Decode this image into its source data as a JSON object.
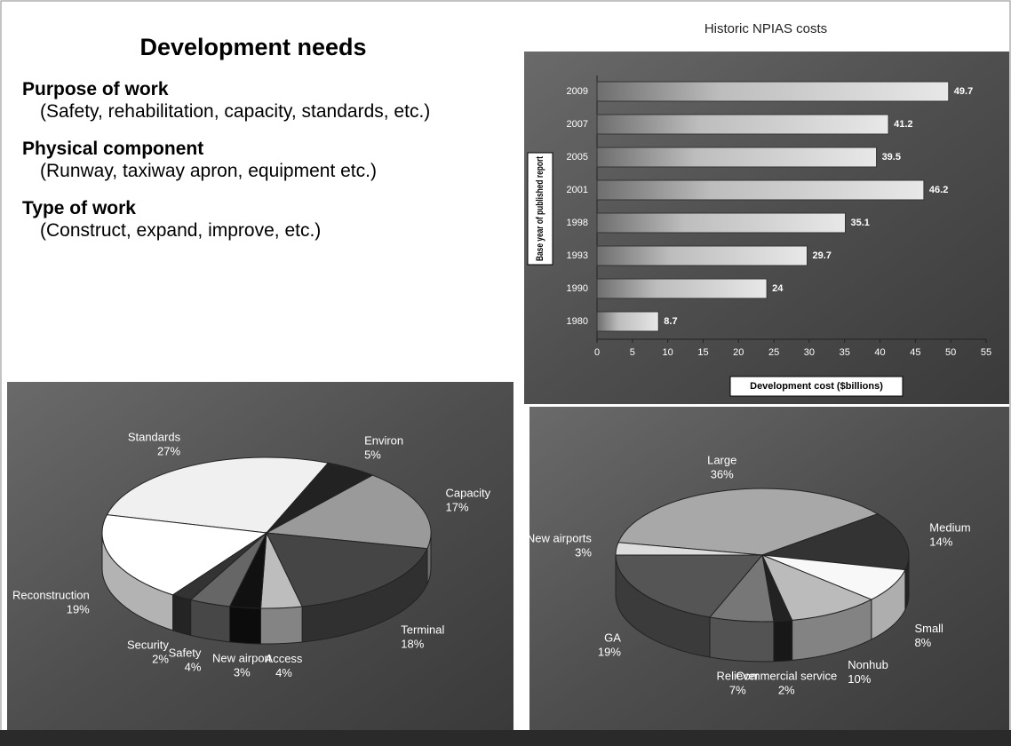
{
  "text_panel": {
    "title": "Development needs",
    "sections": [
      {
        "heading": "Purpose of work",
        "detail": "(Safety, rehabilitation, capacity, standards, etc.)"
      },
      {
        "heading": "Physical component",
        "detail": "(Runway, taxiway apron, equipment etc.)"
      },
      {
        "heading": "Type of work",
        "detail": "(Construct, expand, improve, etc.)"
      }
    ]
  },
  "chart_data": [
    {
      "type": "hbar",
      "title": "Historic NPIAS costs",
      "categories": [
        "2009",
        "2007",
        "2005",
        "2001",
        "1998",
        "1993",
        "1990",
        "1980"
      ],
      "values": [
        49.7,
        41.2,
        39.5,
        46.2,
        35.1,
        29.7,
        24,
        8.7
      ],
      "xlim": [
        0,
        55
      ],
      "xticks": [
        0,
        5,
        10,
        15,
        20,
        25,
        30,
        35,
        40,
        45,
        50,
        55
      ],
      "x_label": "Development cost ($billions)",
      "y_label": "Base year of published report",
      "color": "#dcdcdc"
    },
    {
      "type": "pie3d",
      "categories": [
        "Standards",
        "Environ",
        "Capacity",
        "Terminal",
        "Access",
        "New airport",
        "Safety",
        "Security",
        "Reconstruction"
      ],
      "values": [
        27,
        5,
        17,
        18,
        4,
        3,
        4,
        2,
        19
      ],
      "value_labels": [
        "27%",
        "5%",
        "17%",
        "18%",
        "4%",
        "3%",
        "4%",
        "2%",
        "19%"
      ],
      "colors": [
        "#f0f0f0",
        "#222222",
        "#9a9a9a",
        "#454545",
        "#bdbdbd",
        "#111111",
        "#666666",
        "#333333",
        "#ffffff"
      ]
    },
    {
      "type": "pie3d",
      "categories": [
        "Large",
        "Medium",
        "Small",
        "Nonhub",
        "Commercial service",
        "Reliever",
        "GA",
        "New airports"
      ],
      "values": [
        36,
        14,
        8,
        10,
        2,
        7,
        19,
        3
      ],
      "value_labels": [
        "36%",
        "14%",
        "8%",
        "10%",
        "2%",
        "7%",
        "19%",
        "3%"
      ],
      "colors": [
        "#a8a8a8",
        "#333333",
        "#f8f8f8",
        "#bbbbbb",
        "#222222",
        "#777777",
        "#555555",
        "#dddddd"
      ]
    }
  ]
}
